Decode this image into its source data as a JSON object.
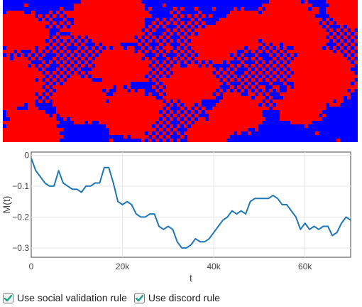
{
  "lattice": {
    "colors": {
      "up": "#ff0000",
      "down": "#0000ff"
    }
  },
  "controls": {
    "social_validation": {
      "label": "Use social validation rule",
      "checked": true
    },
    "discord": {
      "label": "Use discord rule",
      "checked": true
    },
    "check_color": "#1aa38a"
  },
  "chart_data": {
    "type": "line",
    "title": "",
    "xlabel": "t",
    "ylabel": "M(t)",
    "xlim": [
      0,
      70000
    ],
    "ylim": [
      -0.33,
      0.01
    ],
    "xticks": [
      0,
      20000,
      40000,
      60000
    ],
    "xtick_labels": [
      "0",
      "20k",
      "40k",
      "60k"
    ],
    "yticks": [
      0,
      -0.1,
      -0.2,
      -0.3
    ],
    "ytick_labels": [
      "0",
      "−0.1",
      "−0.2",
      "−0.3"
    ],
    "grid": true,
    "line_color": "#1f77b4",
    "series": [
      {
        "x": [
          0,
          1000,
          2000,
          3000,
          4000,
          5000,
          6000,
          7000,
          8000,
          9000,
          10000,
          11000,
          12000,
          13000,
          14000,
          15000,
          16000,
          17000,
          18000,
          19000,
          20000,
          21000,
          22000,
          23000,
          24000,
          25000,
          26000,
          27000,
          28000,
          29000,
          30000,
          31000,
          32000,
          33000,
          34000,
          35000,
          36000,
          37000,
          38000,
          39000,
          40000,
          41000,
          42000,
          43000,
          44000,
          45000,
          46000,
          47000,
          48000,
          49000,
          50000,
          51000,
          52000,
          53000,
          54000,
          55000,
          56000,
          57000,
          58000,
          59000,
          60000,
          61000,
          62000,
          63000,
          64000,
          65000,
          66000,
          67000,
          68000,
          69000,
          70000
        ],
        "y": [
          -0.01,
          -0.05,
          -0.07,
          -0.09,
          -0.1,
          -0.1,
          -0.05,
          -0.09,
          -0.1,
          -0.11,
          -0.11,
          -0.12,
          -0.1,
          -0.1,
          -0.09,
          -0.09,
          -0.04,
          -0.04,
          -0.09,
          -0.15,
          -0.16,
          -0.15,
          -0.16,
          -0.19,
          -0.2,
          -0.2,
          -0.19,
          -0.19,
          -0.23,
          -0.24,
          -0.23,
          -0.24,
          -0.28,
          -0.3,
          -0.3,
          -0.29,
          -0.27,
          -0.28,
          -0.28,
          -0.27,
          -0.25,
          -0.23,
          -0.21,
          -0.2,
          -0.18,
          -0.19,
          -0.18,
          -0.19,
          -0.15,
          -0.14,
          -0.14,
          -0.14,
          -0.14,
          -0.13,
          -0.14,
          -0.16,
          -0.16,
          -0.18,
          -0.2,
          -0.24,
          -0.22,
          -0.24,
          -0.23,
          -0.24,
          -0.23,
          -0.23,
          -0.26,
          -0.25,
          -0.22,
          -0.2,
          -0.21
        ]
      }
    ]
  }
}
